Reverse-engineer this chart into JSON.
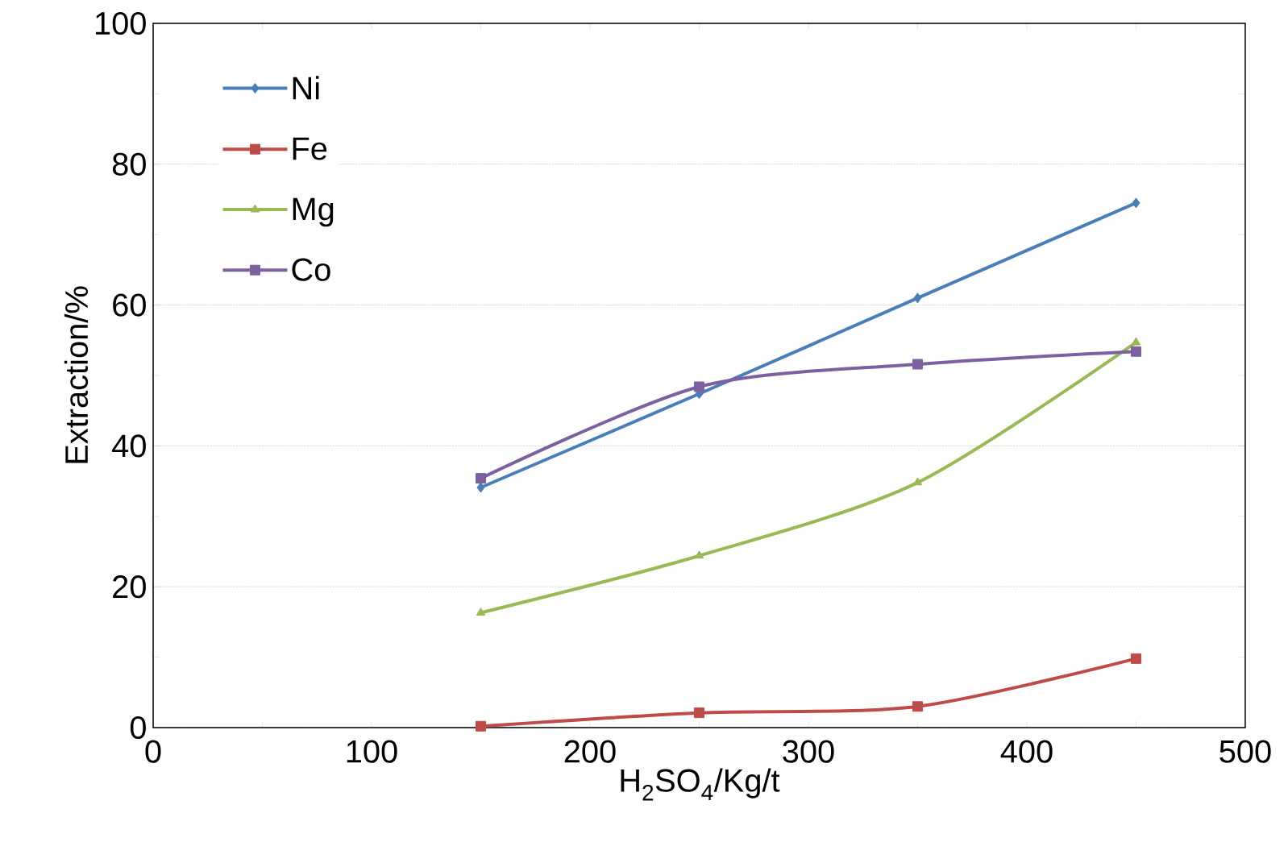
{
  "chart_data": {
    "type": "line",
    "xlabel": "H$_{2}$SO$_{4}$/Kg/t",
    "ylabel": "Extraction/%",
    "x": [
      150,
      250,
      350,
      450
    ],
    "series": [
      {
        "name": "Ni",
        "color": "#4a7ebb",
        "marker": "diamond",
        "values": [
          34.1,
          47.4,
          61.0,
          74.5
        ]
      },
      {
        "name": "Fe",
        "color": "#be4b48",
        "marker": "square",
        "values": [
          0.2,
          2.1,
          3.0,
          9.8
        ]
      },
      {
        "name": "Mg",
        "color": "#98b954",
        "marker": "triangle",
        "values": [
          16.3,
          24.4,
          34.8,
          54.7
        ]
      },
      {
        "name": "Co",
        "color": "#7d60a0",
        "marker": "square",
        "values": [
          35.4,
          48.4,
          51.6,
          53.4
        ]
      }
    ],
    "xlim": [
      0,
      500
    ],
    "ylim": [
      0,
      100
    ],
    "xticks": [
      0,
      {
        "value": 50,
        "label": null
      },
      100,
      {
        "value": 150,
        "label": null
      },
      200,
      {
        "value": 250,
        "label": null
      },
      300,
      {
        "value": 350,
        "label": null
      },
      400,
      {
        "value": 450,
        "label": null
      },
      500
    ],
    "yticks": [
      0,
      {
        "value": 10,
        "label": null
      },
      20,
      {
        "value": 30,
        "label": null
      },
      40,
      {
        "value": 50,
        "label": null
      },
      60,
      {
        "value": 70,
        "label": null
      },
      80,
      {
        "value": 90,
        "label": null
      },
      100
    ],
    "grid": "y",
    "legend": "top left"
  }
}
